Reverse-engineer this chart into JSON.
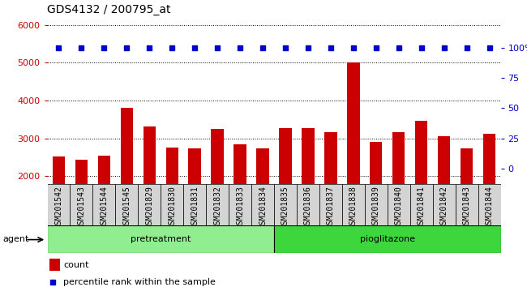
{
  "title": "GDS4132 / 200795_at",
  "samples": [
    "GSM201542",
    "GSM201543",
    "GSM201544",
    "GSM201545",
    "GSM201829",
    "GSM201830",
    "GSM201831",
    "GSM201832",
    "GSM201833",
    "GSM201834",
    "GSM201835",
    "GSM201836",
    "GSM201837",
    "GSM201838",
    "GSM201839",
    "GSM201840",
    "GSM201841",
    "GSM201842",
    "GSM201843",
    "GSM201844"
  ],
  "counts": [
    2520,
    2430,
    2540,
    3800,
    3320,
    2760,
    2730,
    3240,
    2830,
    2730,
    3270,
    3270,
    3160,
    5000,
    2900,
    3160,
    3460,
    3050,
    2730,
    3110
  ],
  "groups": {
    "pretreatment": [
      0,
      9
    ],
    "pioglitazone": [
      10,
      19
    ]
  },
  "group_colors": {
    "pretreatment": "#90EE90",
    "pioglitazone": "#3DD63D"
  },
  "bar_color": "#CC0000",
  "percentile_color": "#0000CC",
  "ylim_left": [
    1800,
    6200
  ],
  "ylim_right": [
    -12.5,
    125
  ],
  "yticks_left": [
    2000,
    3000,
    4000,
    5000,
    6000
  ],
  "yticks_right": [
    0,
    25,
    50,
    75,
    100
  ],
  "legend_items": [
    {
      "label": "count",
      "color": "#CC0000"
    },
    {
      "label": "percentile rank within the sample",
      "color": "#0000CC"
    }
  ],
  "agent_label": "agent",
  "bar_color_left_axis": "#CC0000",
  "right_axis_color": "#0000CC",
  "title_fontsize": 10,
  "tick_fontsize": 7,
  "bar_width": 0.55,
  "bg_gray": "#D4D4D4",
  "n_samples": 20,
  "pretreat_n": 10,
  "pio_n": 10
}
